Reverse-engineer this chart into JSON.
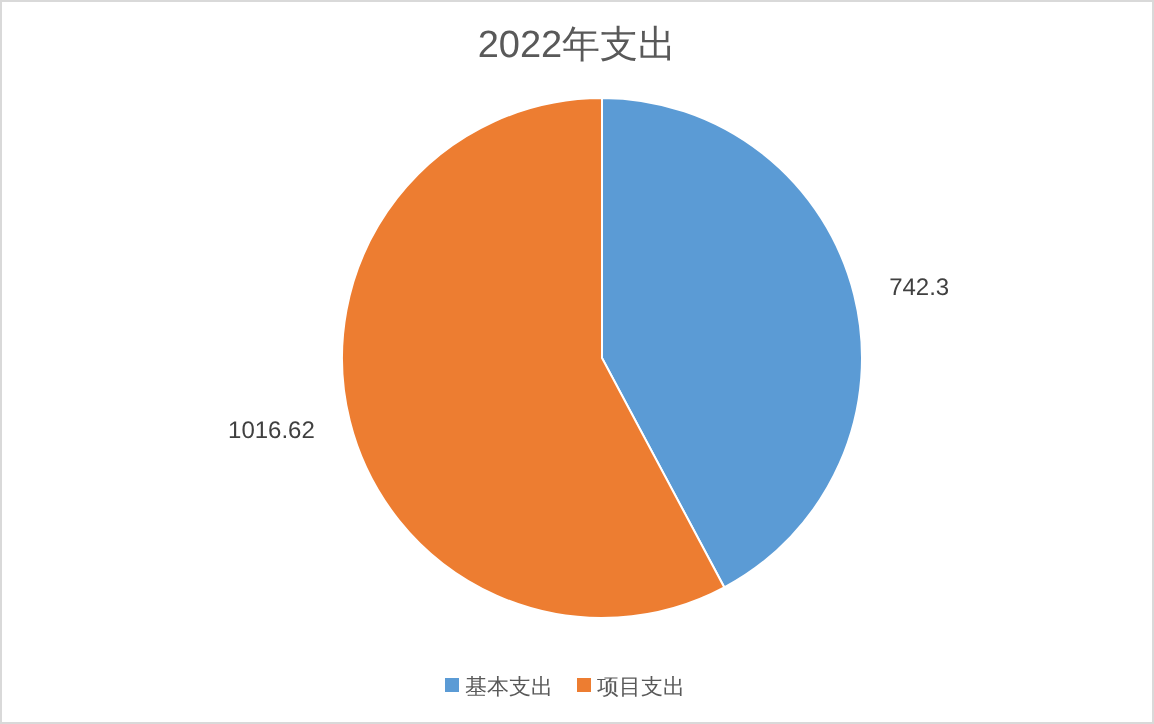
{
  "chart_data": {
    "type": "pie",
    "title": "2022年支出",
    "categories": [
      "基本支出",
      "项目支出"
    ],
    "values": [
      742.3,
      1016.62
    ],
    "colors": [
      "#5b9bd5",
      "#ed7d31"
    ],
    "data_labels": true,
    "legend": "bottom"
  }
}
